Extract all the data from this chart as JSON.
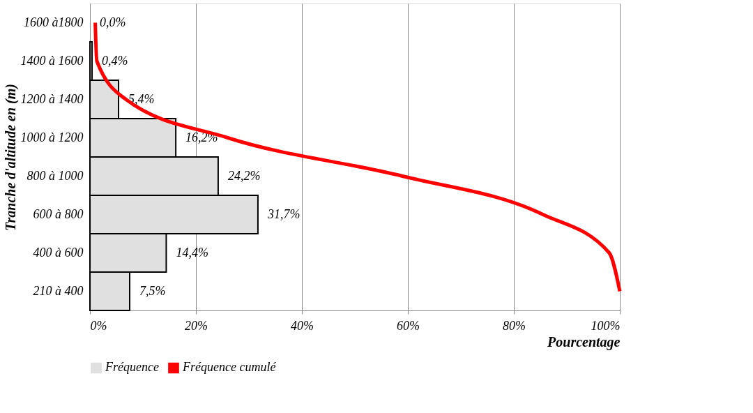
{
  "chart_data": {
    "type": "bar",
    "orientation": "horizontal",
    "ylabel": "Tranche d'altitude en (m)",
    "xlabel": "Pourcentage",
    "categories": [
      "1600 à1800",
      "1400 à 1600",
      "1200 à 1400",
      "1000 à 1200",
      "800 à 1000",
      "600 à 800",
      "400 à 600",
      "210 à 400"
    ],
    "series": [
      {
        "name": "Fréquence",
        "color": "#e0e0e0",
        "values": [
          0.0,
          0.4,
          5.4,
          16.2,
          24.2,
          31.7,
          14.4,
          7.5
        ],
        "value_labels": [
          "0,0%",
          "0,4%",
          "5,4%",
          "16,2%",
          "24,2%",
          "31,7%",
          "14,4%",
          "7,5%"
        ]
      },
      {
        "name": "Fréquence cumulé",
        "type": "line",
        "color": "#ff0000",
        "values": [
          1,
          1.3,
          6.8,
          26,
          59,
          85.5,
          98,
          100
        ]
      }
    ],
    "xlim": [
      0,
      100
    ],
    "xticks": [
      {
        "value": 0,
        "label": "0%"
      },
      {
        "value": 20,
        "label": "20%"
      },
      {
        "value": 40,
        "label": "40%"
      },
      {
        "value": 60,
        "label": "60%"
      },
      {
        "value": 80,
        "label": "80%"
      },
      {
        "value": 100,
        "label": "100%"
      }
    ],
    "grid": "x",
    "legend": "bottom"
  }
}
